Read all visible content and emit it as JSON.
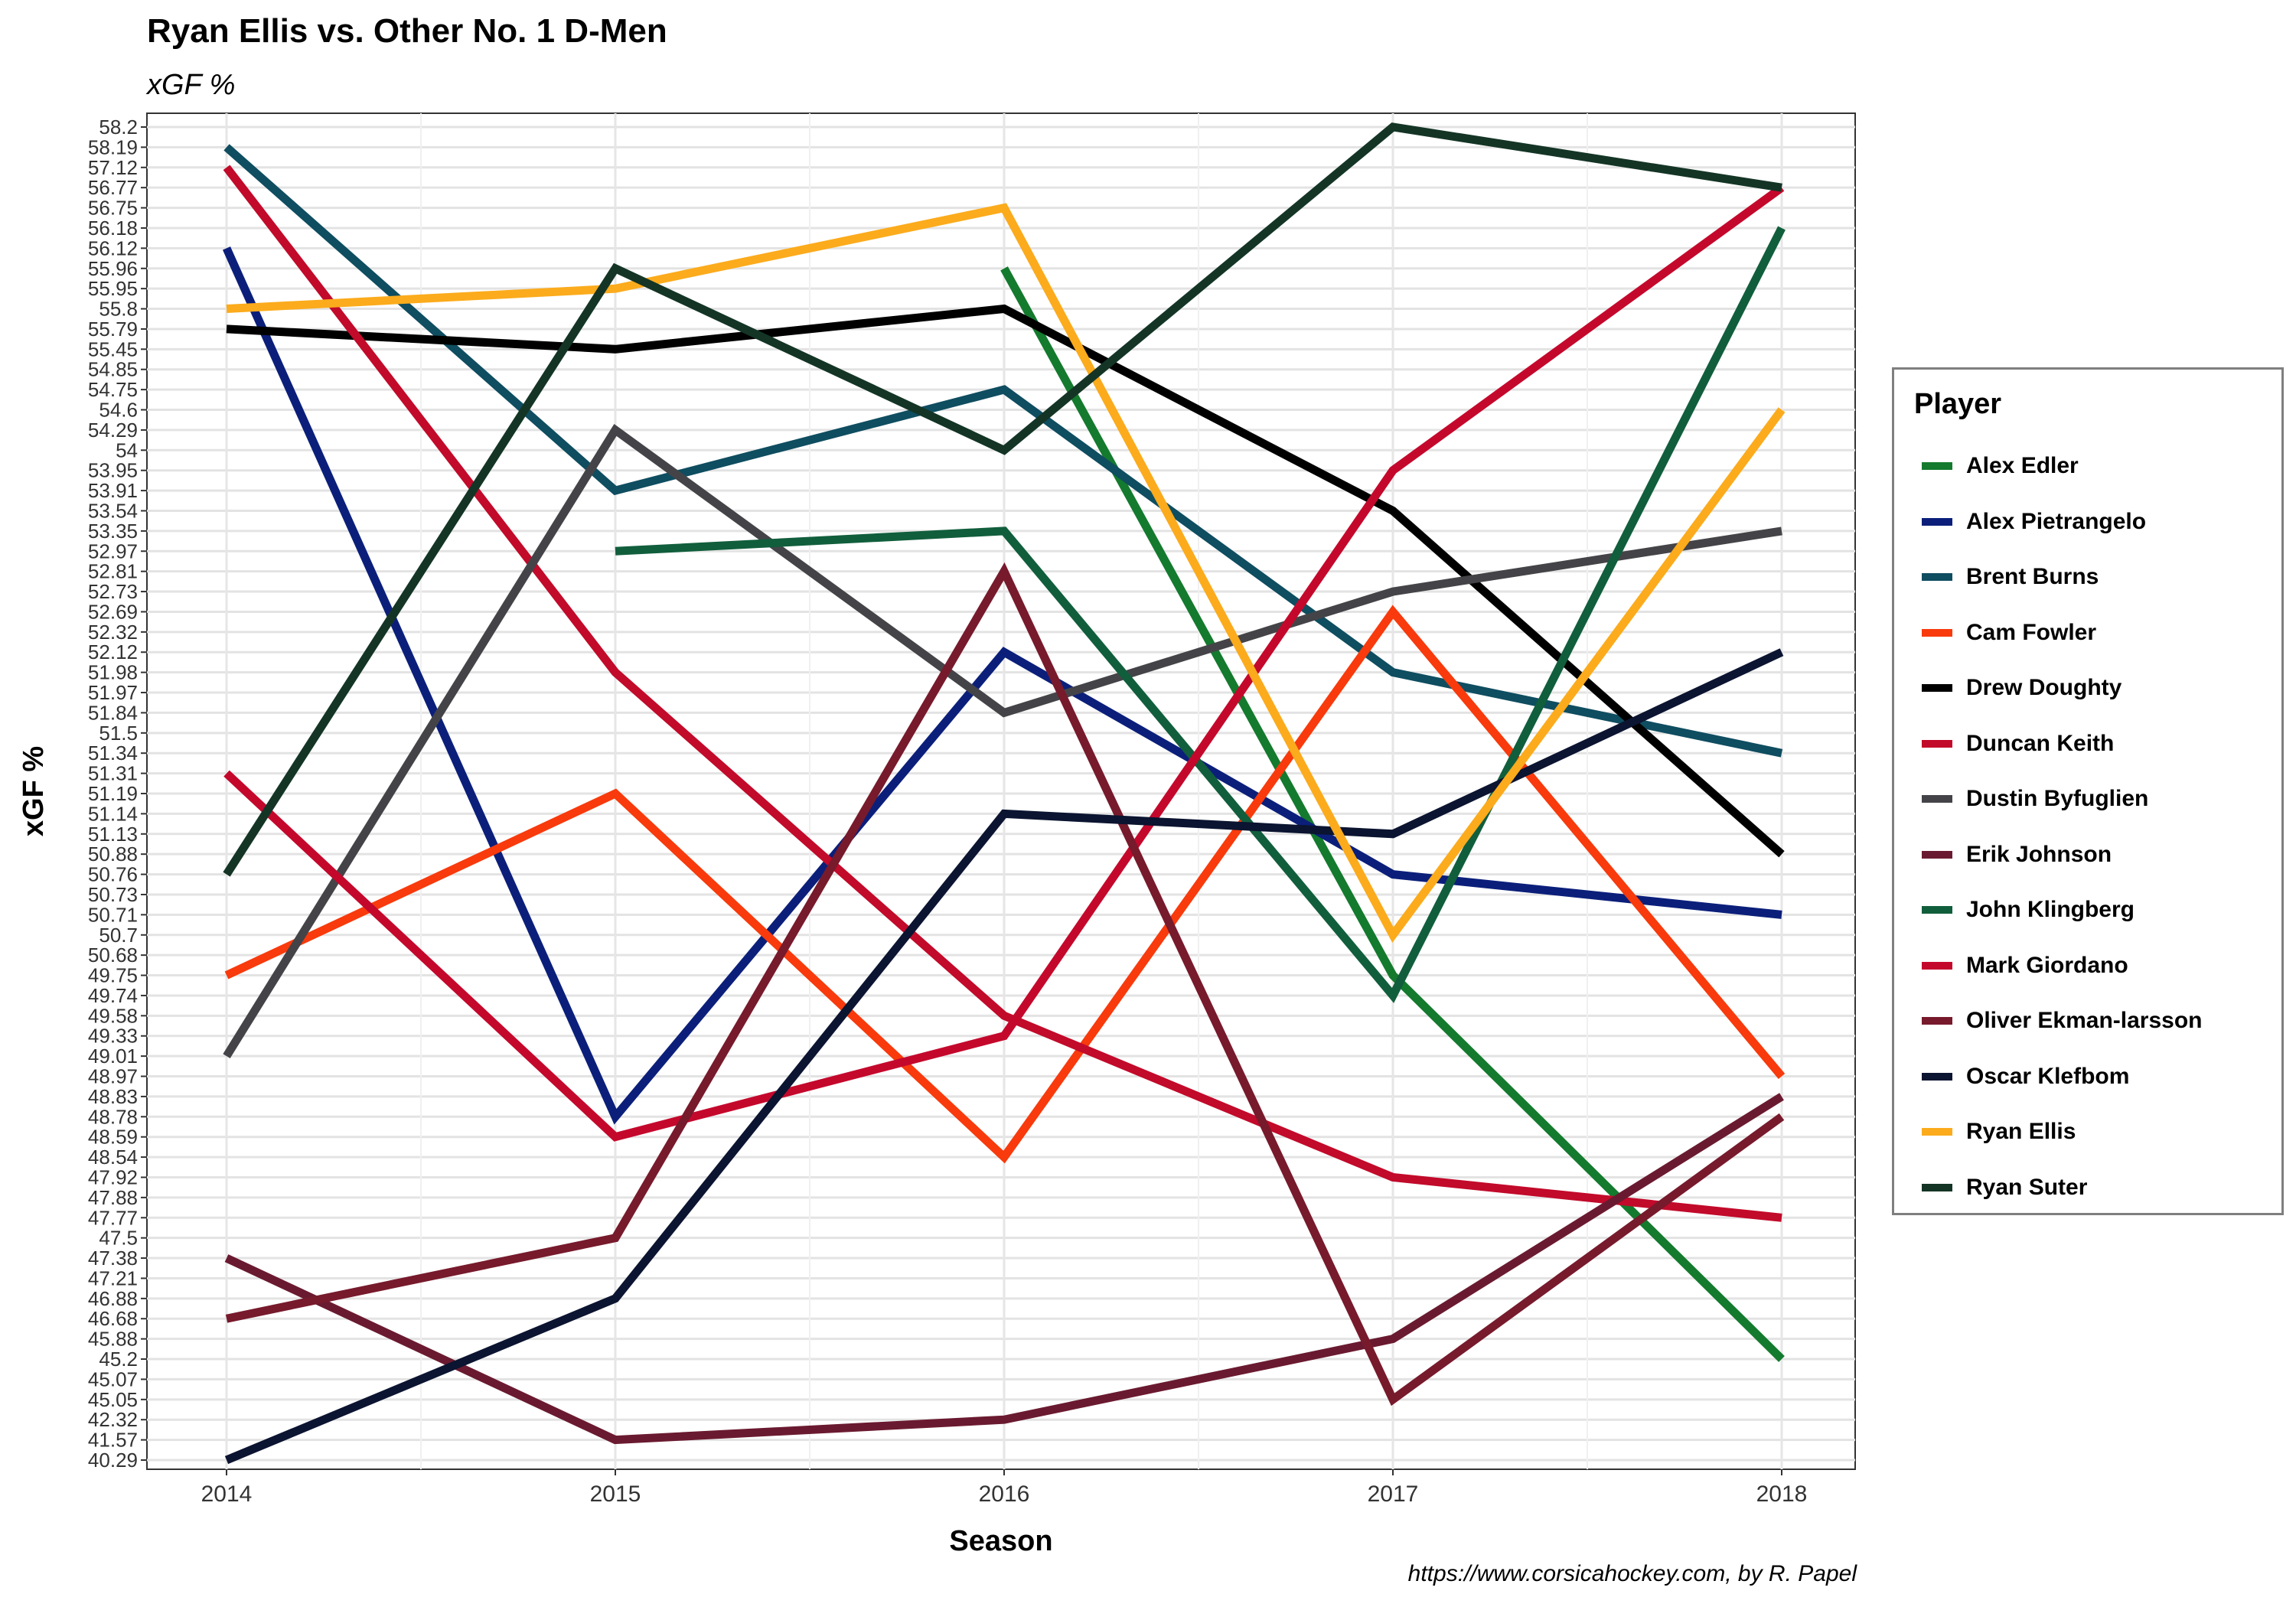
{
  "title": "Ryan Ellis vs. Other No. 1 D-Men",
  "subtitle": "xGF %",
  "caption": "https://www.corsicahockey.com, by R. Papel",
  "chart_data": {
    "type": "line",
    "xlabel": "Season",
    "ylabel": "xGF %",
    "x": [
      2014,
      2015,
      2016,
      2017,
      2018
    ],
    "y_ticks": [
      "40.29",
      "41.57",
      "42.32",
      "45.05",
      "45.07",
      "45.2",
      "45.88",
      "46.68",
      "46.88",
      "47.21",
      "47.38",
      "47.5",
      "47.77",
      "47.88",
      "47.92",
      "48.54",
      "48.59",
      "48.78",
      "48.83",
      "48.97",
      "49.01",
      "49.33",
      "49.58",
      "49.74",
      "49.75",
      "50.68",
      "50.7",
      "50.71",
      "50.73",
      "50.76",
      "50.88",
      "51.13",
      "51.14",
      "51.19",
      "51.31",
      "51.34",
      "51.5",
      "51.84",
      "51.97",
      "51.98",
      "52.12",
      "52.32",
      "52.69",
      "52.73",
      "52.81",
      "52.97",
      "53.35",
      "53.54",
      "53.91",
      "53.95",
      "54",
      "54.29",
      "54.6",
      "54.75",
      "54.85",
      "55.45",
      "55.79",
      "55.8",
      "55.95",
      "55.96",
      "56.12",
      "56.18",
      "56.75",
      "56.77",
      "57.12",
      "58.19",
      "58.2"
    ],
    "grid": true,
    "legend_title": "Player",
    "legend_position": "right",
    "series": [
      {
        "name": "Alex Edler",
        "color": "#147a2e",
        "values": [
          null,
          null,
          55.96,
          49.75,
          45.2
        ]
      },
      {
        "name": "Alex Pietrangelo",
        "color": "#0b1f7a",
        "values": [
          56.12,
          48.78,
          52.12,
          50.76,
          50.71
        ]
      },
      {
        "name": "Brent Burns",
        "color": "#0f4d60",
        "values": [
          58.19,
          53.91,
          54.75,
          51.98,
          51.34
        ]
      },
      {
        "name": "Cam Fowler",
        "color": "#f83a0c",
        "values": [
          49.75,
          51.19,
          48.54,
          52.69,
          48.97
        ]
      },
      {
        "name": "Drew Doughty",
        "color": "#000000",
        "values": [
          55.79,
          55.45,
          55.8,
          53.54,
          50.88
        ]
      },
      {
        "name": "Duncan Keith",
        "color": "#c20a2a",
        "values": [
          57.12,
          51.98,
          49.58,
          47.92,
          47.77
        ]
      },
      {
        "name": "Dustin Byfuglien",
        "color": "#444448",
        "values": [
          49.01,
          54.29,
          51.84,
          52.73,
          53.35
        ]
      },
      {
        "name": "Erik Johnson",
        "color": "#6a1a30",
        "values": [
          47.38,
          41.57,
          42.32,
          45.88,
          48.83
        ]
      },
      {
        "name": "John Klingberg",
        "color": "#115e3c",
        "values": [
          null,
          52.97,
          53.35,
          49.74,
          56.18
        ]
      },
      {
        "name": "Mark Giordano",
        "color": "#c4082c",
        "values": [
          51.31,
          48.59,
          49.33,
          53.95,
          56.77
        ]
      },
      {
        "name": "Oliver Ekman-larsson",
        "color": "#771a2c",
        "values": [
          46.68,
          47.5,
          52.81,
          45.05,
          48.78
        ]
      },
      {
        "name": "Oscar Klefbom",
        "color": "#0b1430",
        "values": [
          40.29,
          46.88,
          51.14,
          51.13,
          52.12
        ]
      },
      {
        "name": "Ryan Ellis",
        "color": "#fbab1c",
        "values": [
          55.8,
          55.95,
          56.75,
          50.7,
          54.6
        ]
      },
      {
        "name": "Ryan Suter",
        "color": "#143526",
        "values": [
          50.76,
          55.96,
          54.0,
          58.2,
          56.77
        ]
      }
    ]
  }
}
